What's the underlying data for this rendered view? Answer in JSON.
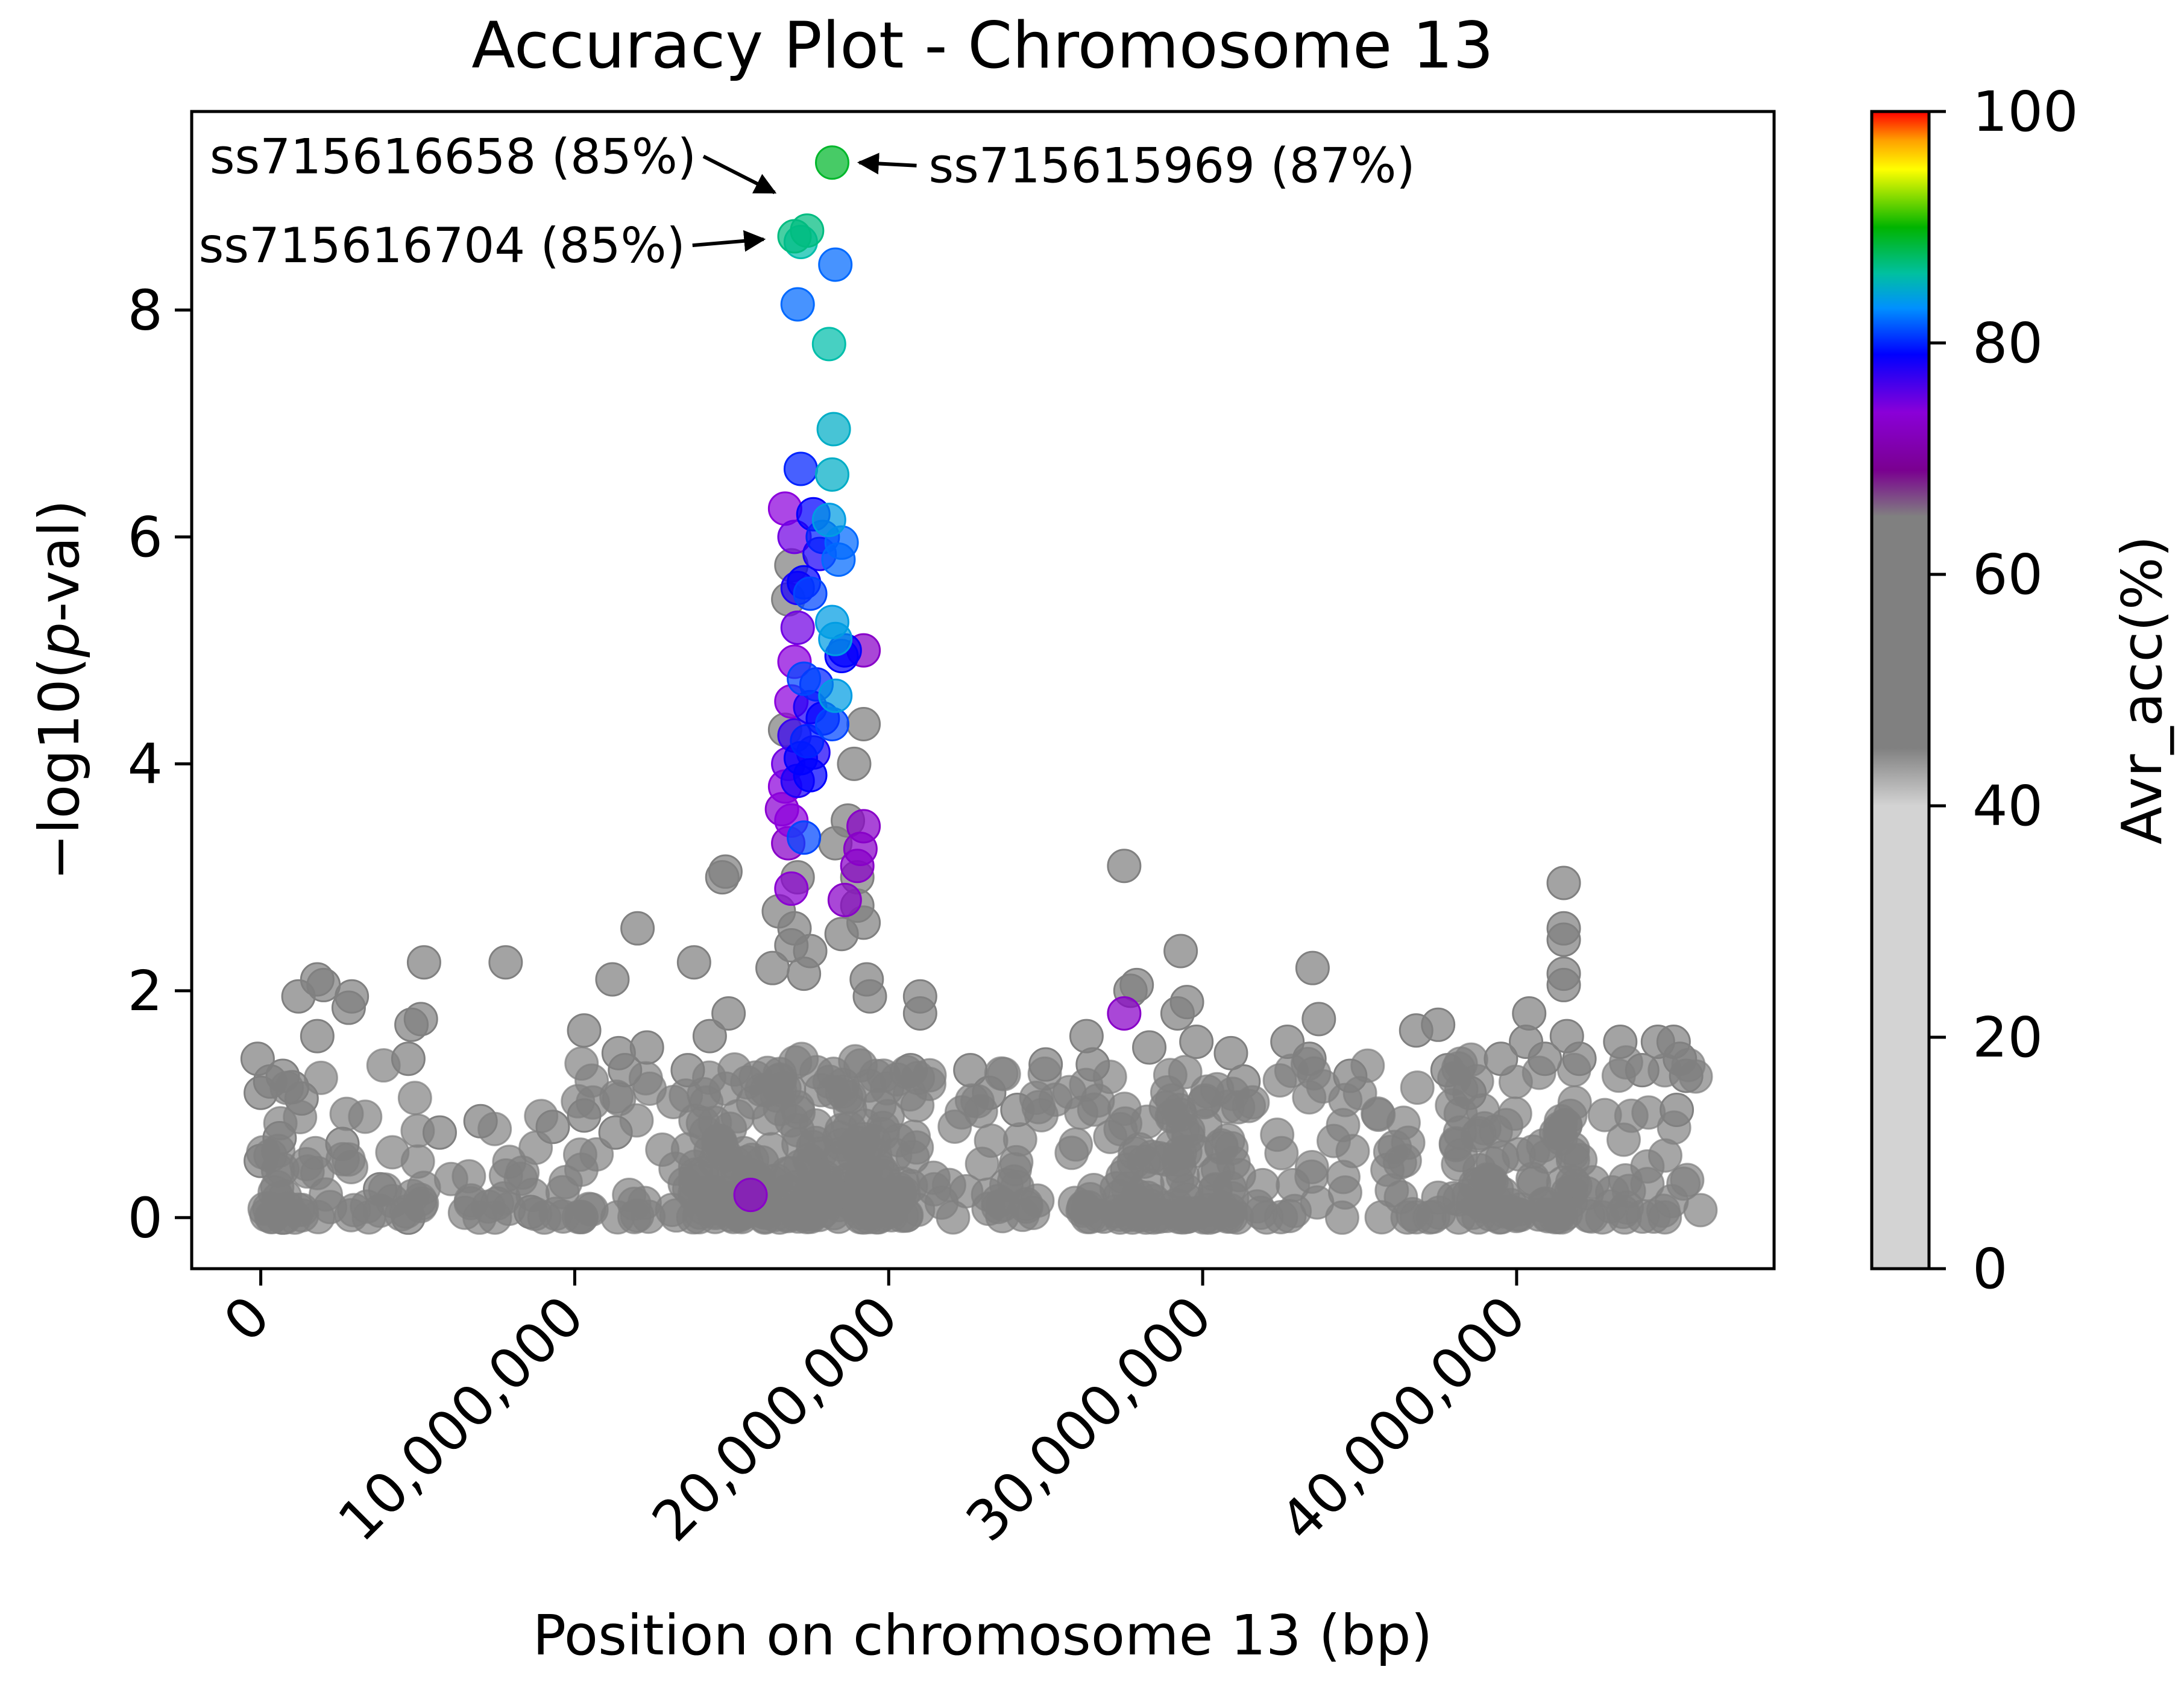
{
  "chart_data": {
    "type": "scatter",
    "title": "Accuracy Plot - Chromosome 13",
    "xlabel": "Position on chromosome 13 (bp)",
    "ylabel_prefix": "−log10(",
    "ylabel_italic": "p",
    "ylabel_suffix": "-val)",
    "xlim": [
      -2200000,
      48200000
    ],
    "ylim": [
      -0.45,
      9.75
    ],
    "xticks": [
      {
        "value": 0,
        "label": "0"
      },
      {
        "value": 10000000,
        "label": "10,000,000"
      },
      {
        "value": 20000000,
        "label": "20,000,000"
      },
      {
        "value": 30000000,
        "label": "30,000,000"
      },
      {
        "value": 40000000,
        "label": "40,000,000"
      }
    ],
    "yticks": [
      {
        "value": 0,
        "label": "0"
      },
      {
        "value": 2,
        "label": "2"
      },
      {
        "value": 4,
        "label": "4"
      },
      {
        "value": 6,
        "label": "6"
      },
      {
        "value": 8,
        "label": "8"
      }
    ],
    "colorbar": {
      "label": "Avr_acc(%)",
      "range": [
        0,
        100
      ],
      "ticks": [
        {
          "value": 0,
          "label": "0"
        },
        {
          "value": 20,
          "label": "20"
        },
        {
          "value": 40,
          "label": "40"
        },
        {
          "value": 60,
          "label": "60"
        },
        {
          "value": 80,
          "label": "80"
        },
        {
          "value": 100,
          "label": "100"
        }
      ],
      "gray_low": "#d3d3d3",
      "gray_mid": "#808080",
      "colored_stops": [
        "#800080",
        "#9400d3",
        "#0000ff",
        "#00bfff",
        "#00c08f",
        "#00b000",
        "#ffff00",
        "#ffa500",
        "#ff0000"
      ]
    },
    "annotations": [
      {
        "label": "ss715615969 (87%)",
        "x": 18200000,
        "y": 9.3,
        "acc": 87
      },
      {
        "label": "ss715616658 (85%)",
        "x": 16750000,
        "y": 8.85,
        "acc": 85
      },
      {
        "label": "ss715616704 (85%)",
        "x": 16400000,
        "y": 8.65,
        "acc": 85
      }
    ],
    "points_background_note": "n/a",
    "series": [
      {
        "name": "peak",
        "points": [
          [
            18200000,
            9.3,
            87
          ],
          [
            17400000,
            8.7,
            85
          ],
          [
            17000000,
            8.65,
            85
          ],
          [
            17200000,
            8.6,
            84
          ],
          [
            18300000,
            8.4,
            80
          ],
          [
            17100000,
            8.05,
            80
          ],
          [
            18100000,
            7.7,
            84
          ],
          [
            18250000,
            6.95,
            83
          ],
          [
            18200000,
            6.55,
            83
          ],
          [
            17200000,
            6.6,
            78
          ],
          [
            16700000,
            6.25,
            72
          ],
          [
            17600000,
            6.2,
            77
          ],
          [
            18100000,
            6.15,
            82
          ],
          [
            17900000,
            6.0,
            78
          ],
          [
            17000000,
            6.0,
            73
          ],
          [
            18500000,
            5.95,
            80
          ],
          [
            18400000,
            5.8,
            80
          ],
          [
            17800000,
            5.85,
            76
          ],
          [
            16900000,
            5.75,
            63
          ],
          [
            17300000,
            5.6,
            77
          ],
          [
            17100000,
            5.55,
            76
          ],
          [
            17500000,
            5.5,
            79
          ],
          [
            16800000,
            5.45,
            60
          ],
          [
            18200000,
            5.25,
            82
          ],
          [
            18300000,
            5.1,
            82
          ],
          [
            17100000,
            5.2,
            73
          ],
          [
            18600000,
            5.0,
            77
          ],
          [
            19200000,
            5.0,
            70
          ],
          [
            17000000,
            4.9,
            72
          ],
          [
            18500000,
            4.95,
            77
          ],
          [
            17300000,
            4.75,
            79
          ],
          [
            17700000,
            4.7,
            78
          ],
          [
            18300000,
            4.6,
            82
          ],
          [
            16900000,
            4.55,
            72
          ],
          [
            17500000,
            4.5,
            76
          ],
          [
            17900000,
            4.4,
            77
          ],
          [
            18200000,
            4.35,
            79
          ],
          [
            19200000,
            4.35,
            60
          ],
          [
            16700000,
            4.3,
            62
          ],
          [
            17000000,
            4.25,
            75
          ],
          [
            17400000,
            4.2,
            78
          ],
          [
            17600000,
            4.1,
            76
          ],
          [
            17200000,
            4.05,
            77
          ],
          [
            16800000,
            4.0,
            73
          ],
          [
            18900000,
            4.0,
            60
          ],
          [
            17500000,
            3.9,
            77
          ],
          [
            17100000,
            3.85,
            76
          ],
          [
            16700000,
            3.8,
            72
          ],
          [
            16600000,
            3.6,
            71
          ],
          [
            16900000,
            3.5,
            72
          ],
          [
            17300000,
            3.35,
            79
          ],
          [
            16800000,
            3.3,
            70
          ],
          [
            18700000,
            3.5,
            60
          ],
          [
            19200000,
            3.45,
            70
          ],
          [
            19100000,
            3.25,
            70
          ],
          [
            19000000,
            3.1,
            70
          ],
          [
            16900000,
            2.9,
            71
          ],
          [
            18600000,
            2.8,
            70
          ],
          [
            19000000,
            2.75,
            60
          ],
          [
            19200000,
            2.6,
            60
          ],
          [
            18500000,
            2.5,
            60
          ],
          [
            18300000,
            3.3,
            60
          ],
          [
            19000000,
            3.0,
            60
          ],
          [
            16500000,
            2.7,
            60
          ],
          [
            17000000,
            2.55,
            60
          ],
          [
            17500000,
            2.35,
            60
          ],
          [
            16300000,
            2.2,
            60
          ],
          [
            19300000,
            2.1,
            60
          ],
          [
            19400000,
            1.95,
            60
          ],
          [
            17100000,
            3.0,
            60
          ],
          [
            16900000,
            2.4,
            60
          ],
          [
            17300000,
            2.15,
            60
          ]
        ]
      },
      {
        "name": "scattered",
        "points": [
          [
            -100000,
            1.4,
            55
          ],
          [
            0,
            1.1,
            55
          ],
          [
            300000,
            1.2,
            55
          ],
          [
            700000,
            1.25,
            55
          ],
          [
            1000000,
            1.15,
            55
          ],
          [
            1300000,
            1.05,
            55
          ],
          [
            1200000,
            1.95,
            55
          ],
          [
            1800000,
            2.1,
            55
          ],
          [
            1800000,
            1.6,
            55
          ],
          [
            2000000,
            2.05,
            55
          ],
          [
            2900000,
            1.95,
            55
          ],
          [
            2800000,
            1.85,
            55
          ],
          [
            4800000,
            1.7,
            55
          ],
          [
            5100000,
            1.75,
            55
          ],
          [
            4700000,
            1.4,
            55
          ],
          [
            5200000,
            2.25,
            55
          ],
          [
            7800000,
            2.25,
            55
          ],
          [
            11200000,
            2.1,
            55
          ],
          [
            10300000,
            1.65,
            55
          ],
          [
            11400000,
            1.45,
            55
          ],
          [
            12300000,
            1.5,
            55
          ],
          [
            11600000,
            1.3,
            55
          ],
          [
            12000000,
            2.55,
            55
          ],
          [
            13800000,
            2.25,
            55
          ],
          [
            14700000,
            3.0,
            55
          ],
          [
            14800000,
            3.05,
            55
          ],
          [
            13600000,
            1.3,
            55
          ],
          [
            14900000,
            1.8,
            55
          ],
          [
            14300000,
            1.6,
            55
          ],
          [
            21000000,
            1.8,
            55
          ],
          [
            21000000,
            1.95,
            55
          ],
          [
            20700000,
            1.3,
            55
          ],
          [
            22600000,
            1.3,
            55
          ],
          [
            23200000,
            1.1,
            55
          ],
          [
            24100000,
            0.95,
            55
          ],
          [
            25000000,
            1.35,
            55
          ],
          [
            26300000,
            1.6,
            55
          ],
          [
            26500000,
            1.35,
            55
          ],
          [
            27500000,
            3.1,
            55
          ],
          [
            27700000,
            2.0,
            55
          ],
          [
            27900000,
            2.05,
            55
          ],
          [
            27500000,
            1.8,
            70
          ],
          [
            28300000,
            1.5,
            55
          ],
          [
            29200000,
            1.8,
            55
          ],
          [
            29500000,
            1.9,
            55
          ],
          [
            29300000,
            2.35,
            55
          ],
          [
            29800000,
            1.55,
            55
          ],
          [
            30900000,
            1.45,
            55
          ],
          [
            31300000,
            1.2,
            55
          ],
          [
            32700000,
            1.55,
            55
          ],
          [
            33500000,
            2.2,
            55
          ],
          [
            33700000,
            1.75,
            55
          ],
          [
            33400000,
            1.4,
            55
          ],
          [
            34700000,
            1.25,
            55
          ],
          [
            36800000,
            1.65,
            55
          ],
          [
            37500000,
            1.7,
            55
          ],
          [
            37800000,
            1.3,
            55
          ],
          [
            38500000,
            1.1,
            55
          ],
          [
            39500000,
            1.4,
            55
          ],
          [
            40400000,
            1.8,
            55
          ],
          [
            40300000,
            1.55,
            55
          ],
          [
            40900000,
            1.4,
            55
          ],
          [
            41500000,
            2.95,
            55
          ],
          [
            41500000,
            2.55,
            55
          ],
          [
            41500000,
            2.45,
            55
          ],
          [
            41500000,
            2.15,
            55
          ],
          [
            41500000,
            2.05,
            55
          ],
          [
            41600000,
            1.6,
            55
          ],
          [
            42000000,
            1.4,
            55
          ],
          [
            43300000,
            1.55,
            55
          ],
          [
            44000000,
            1.3,
            55
          ],
          [
            44500000,
            1.55,
            55
          ],
          [
            45000000,
            1.55,
            55
          ],
          [
            45200000,
            1.4,
            55
          ],
          [
            45400000,
            1.25,
            55
          ],
          [
            45100000,
            0.95,
            55
          ],
          [
            7000000,
            0.85,
            55
          ],
          [
            9300000,
            0.8,
            55
          ],
          [
            10300000,
            0.9,
            55
          ],
          [
            11300000,
            0.75,
            55
          ],
          [
            0,
            0.5,
            55
          ],
          [
            600000,
            0.7,
            55
          ],
          [
            2600000,
            0.65,
            55
          ],
          [
            5700000,
            0.75,
            55
          ],
          [
            3800000,
            0.25,
            55
          ],
          [
            4700000,
            0.0,
            55
          ],
          [
            700000,
            0.0,
            55
          ],
          [
            8600000,
            0.05,
            55
          ],
          [
            15600000,
            0.2,
            70
          ]
        ]
      }
    ]
  }
}
